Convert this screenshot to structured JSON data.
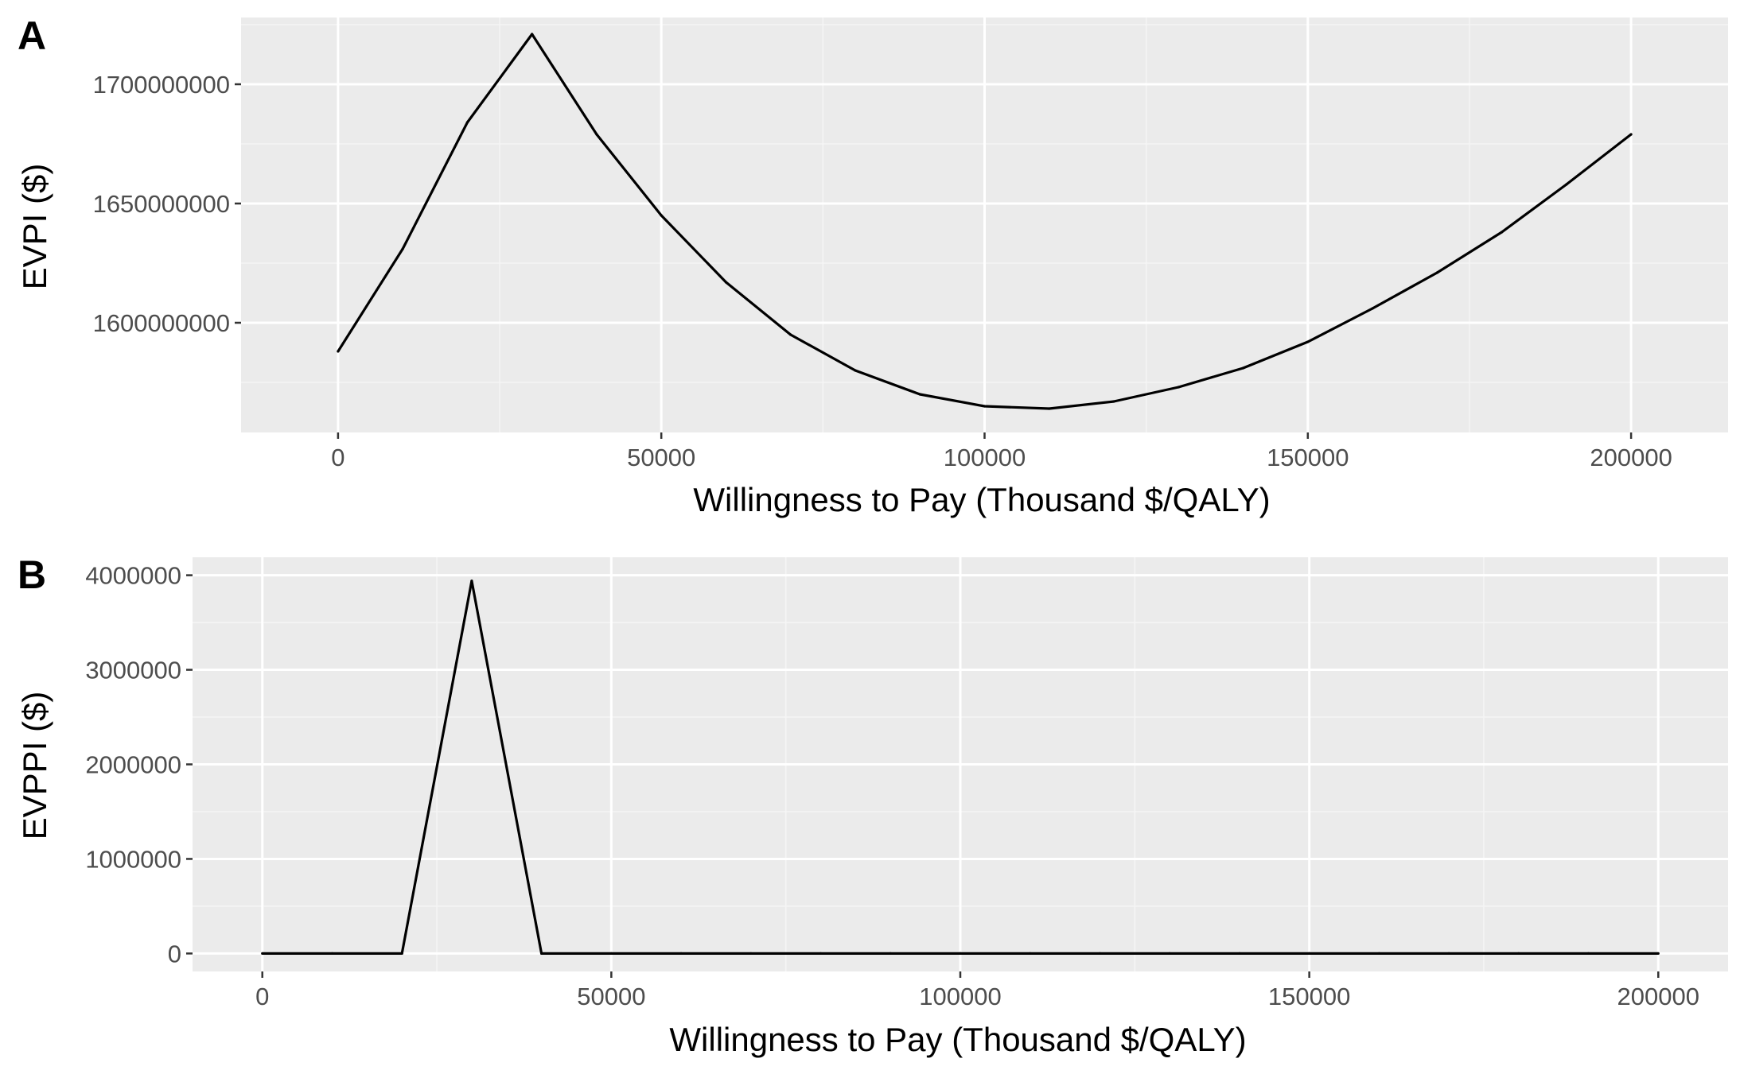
{
  "colors": {
    "panel_background": "#ebebeb",
    "grid_major": "#ffffff",
    "grid_minor": "#f5f5f5",
    "line": "#000000",
    "tick_text": "#4d4d4d",
    "tick_mark": "#333333"
  },
  "chart_data": [
    {
      "type": "line",
      "panel_label": "A",
      "title": "",
      "xlabel": "Willingness to Pay (Thousand $/QALY)",
      "ylabel": "EVPI ($)",
      "xlim": [
        -15000,
        215000
      ],
      "ylim": [
        1554000000,
        1728000000
      ],
      "x_ticks": [
        0,
        50000,
        100000,
        150000,
        200000
      ],
      "x_tick_labels": [
        "0",
        "50000",
        "100000",
        "150000",
        "200000"
      ],
      "y_ticks": [
        1600000000,
        1650000000,
        1700000000
      ],
      "y_tick_labels": [
        "1600000000",
        "1650000000",
        "1700000000"
      ],
      "grid": true,
      "legend": "none",
      "x": [
        0,
        10000,
        20000,
        30000,
        40000,
        50000,
        60000,
        70000,
        80000,
        90000,
        100000,
        110000,
        120000,
        130000,
        140000,
        150000,
        160000,
        170000,
        180000,
        190000,
        200000
      ],
      "y": [
        1588000000,
        1631000000,
        1684000000,
        1721000000,
        1679000000,
        1645000000,
        1617000000,
        1595000000,
        1580000000,
        1570000000,
        1565000000,
        1564000000,
        1567000000,
        1573000000,
        1581000000,
        1592000000,
        1606000000,
        1621000000,
        1638000000,
        1658000000,
        1679000000
      ]
    },
    {
      "type": "line",
      "panel_label": "B",
      "title": "",
      "xlabel": "Willingness to Pay (Thousand $/QALY)",
      "ylabel": "EVPPI ($)",
      "xlim": [
        -10000,
        210000
      ],
      "ylim": [
        -190000,
        4190000
      ],
      "x_ticks": [
        0,
        50000,
        100000,
        150000,
        200000
      ],
      "x_tick_labels": [
        "0",
        "50000",
        "100000",
        "150000",
        "200000"
      ],
      "y_ticks": [
        0,
        1000000,
        2000000,
        3000000,
        4000000
      ],
      "y_tick_labels": [
        "0",
        "1000000",
        "2000000",
        "3000000",
        "4000000"
      ],
      "grid": true,
      "legend": "none",
      "x": [
        0,
        10000,
        20000,
        30000,
        40000,
        50000,
        60000,
        70000,
        80000,
        90000,
        100000,
        110000,
        120000,
        130000,
        140000,
        150000,
        160000,
        170000,
        180000,
        190000,
        200000
      ],
      "y": [
        0,
        0,
        0,
        3940000,
        0,
        0,
        0,
        0,
        0,
        0,
        0,
        0,
        0,
        0,
        0,
        0,
        0,
        0,
        0,
        0,
        0
      ]
    }
  ]
}
